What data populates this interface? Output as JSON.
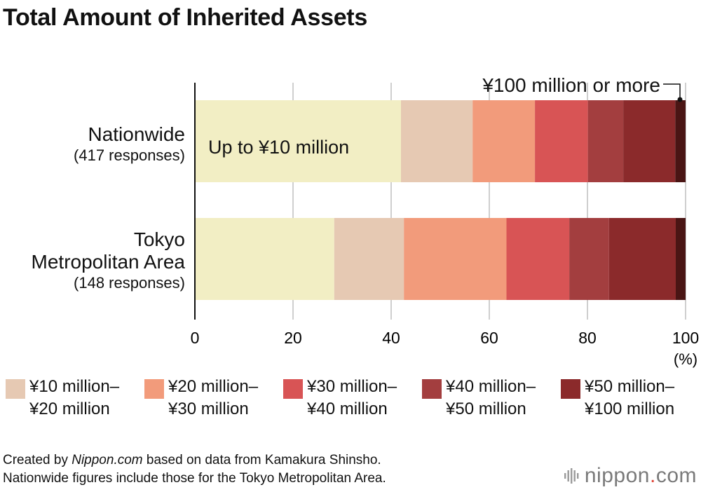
{
  "title": "Total Amount of Inherited Assets",
  "chart_data": {
    "type": "bar",
    "orientation": "horizontal",
    "stacked": true,
    "title": "Total Amount of Inherited Assets",
    "categories": [
      {
        "name": "Nationwide",
        "sub": "(417 responses)"
      },
      {
        "name_lines": [
          "Tokyo",
          "Metropolitan Area"
        ],
        "sub": "(148 responses)"
      }
    ],
    "series": [
      {
        "name": "Up to ¥10 million",
        "color": "#f2eec4",
        "values": [
          42.0,
          28.4
        ]
      },
      {
        "name": "¥10 million– ¥20 million",
        "color": "#e6c9b3",
        "values": [
          14.6,
          14.2
        ]
      },
      {
        "name": "¥20 million– ¥30 million",
        "color": "#f29b7b",
        "values": [
          12.7,
          20.9
        ]
      },
      {
        "name": "¥30 million– ¥40 million",
        "color": "#d85455",
        "values": [
          10.8,
          12.8
        ]
      },
      {
        "name": "¥40 million– ¥50 million",
        "color": "#a33e3f",
        "values": [
          7.2,
          8.1
        ]
      },
      {
        "name": "¥50 million– ¥100 million",
        "color": "#8b2a2b",
        "values": [
          10.6,
          13.6
        ]
      },
      {
        "name": "¥100 million or more",
        "color": "#4a1514",
        "values": [
          2.1,
          2.0
        ]
      }
    ],
    "xlim": [
      0,
      100
    ],
    "xticks": [
      0,
      20,
      40,
      60,
      80,
      100
    ],
    "xunit": "(%)",
    "grid": true,
    "annotations": {
      "inside_label": "Up to ¥10 million",
      "callout": "¥100 million or more"
    }
  },
  "legend": [
    {
      "line1": "¥10 million–",
      "line2": "¥20 million",
      "color": "#e6c9b3"
    },
    {
      "line1": "¥20 million–",
      "line2": "¥30 million",
      "color": "#f29b7b"
    },
    {
      "line1": "¥30 million–",
      "line2": "¥40 million",
      "color": "#d85455"
    },
    {
      "line1": "¥40 million–",
      "line2": "¥50 million",
      "color": "#a33e3f"
    },
    {
      "line1": "¥50 million–",
      "line2": "¥100 million",
      "color": "#8b2a2b"
    }
  ],
  "footer": {
    "prefix": "Created by ",
    "source_name": "Nippon.com",
    "suffix": " based on data from Kamakura Shinsho.",
    "line2": "Nationwide figures include those for the Tokyo Metropolitan Area."
  },
  "logo": {
    "left": "nippon",
    "dot": ".",
    "right": "com"
  }
}
